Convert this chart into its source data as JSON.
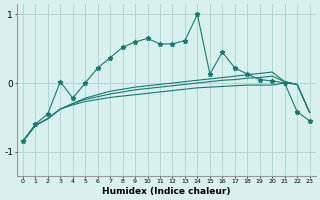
{
  "xlabel": "Humidex (Indice chaleur)",
  "x_values": [
    0,
    1,
    2,
    3,
    4,
    5,
    6,
    7,
    8,
    9,
    10,
    11,
    12,
    13,
    14,
    15,
    16,
    17,
    18,
    19,
    20,
    21,
    22,
    23
  ],
  "line1_y": [
    -0.85,
    -0.6,
    -0.45,
    0.02,
    -0.22,
    0.0,
    0.22,
    0.37,
    0.52,
    0.6,
    0.65,
    0.57,
    0.57,
    0.62,
    1.0,
    0.13,
    0.45,
    0.22,
    0.13,
    0.05,
    0.03,
    0.0,
    -0.42,
    -0.55
  ],
  "line2_y": [
    -0.85,
    -0.62,
    -0.52,
    -0.38,
    -0.3,
    -0.22,
    -0.17,
    -0.12,
    -0.09,
    -0.06,
    -0.04,
    -0.02,
    0.0,
    0.02,
    0.04,
    0.06,
    0.08,
    0.1,
    0.12,
    0.14,
    0.16,
    0.02,
    -0.02,
    -0.43
  ],
  "line3_y": [
    -0.85,
    -0.62,
    -0.52,
    -0.38,
    -0.3,
    -0.24,
    -0.2,
    -0.16,
    -0.13,
    -0.1,
    -0.08,
    -0.06,
    -0.04,
    -0.02,
    0.0,
    0.02,
    0.04,
    0.05,
    0.07,
    0.08,
    0.1,
    0.02,
    -0.02,
    -0.43
  ],
  "line4_y": [
    -0.85,
    -0.62,
    -0.52,
    -0.38,
    -0.32,
    -0.27,
    -0.24,
    -0.21,
    -0.19,
    -0.17,
    -0.15,
    -0.13,
    -0.11,
    -0.09,
    -0.07,
    -0.06,
    -0.05,
    -0.04,
    -0.03,
    -0.03,
    -0.03,
    0.0,
    -0.02,
    -0.43
  ],
  "color": "#1a7a6e",
  "bg_color": "#d8f0ee",
  "grid_color": "#b0d8d4",
  "ylim": [
    -1.35,
    1.15
  ],
  "yticks": [
    -1,
    0,
    1
  ],
  "figsize": [
    3.2,
    2.0
  ],
  "dpi": 100
}
